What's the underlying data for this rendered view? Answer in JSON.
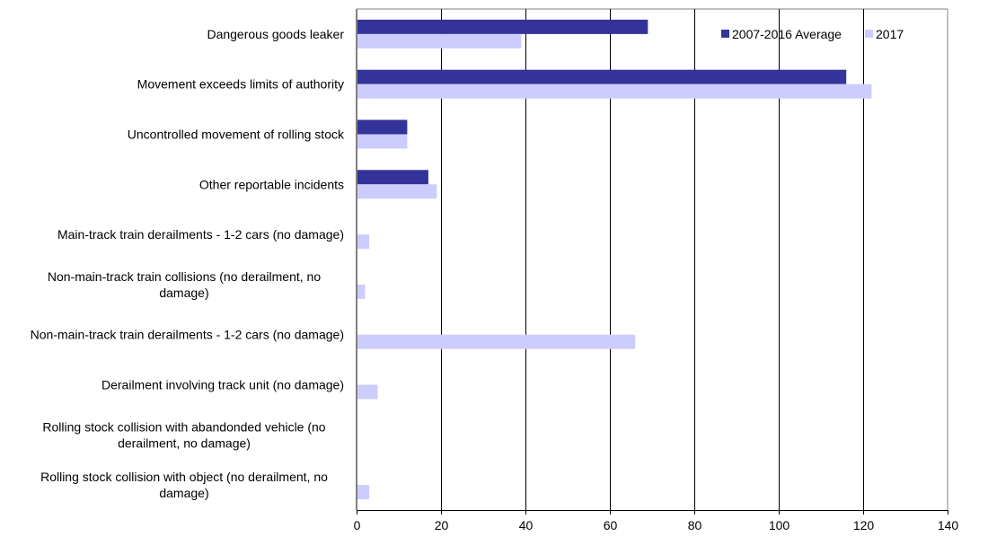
{
  "chart_data": {
    "type": "bar",
    "orientation": "horizontal",
    "title": "",
    "xlabel": "",
    "ylabel": "",
    "categories": [
      [
        "Dangerous goods leaker"
      ],
      [
        "Movement exceeds limits of authority"
      ],
      [
        "Uncontrolled movement of rolling stock"
      ],
      [
        "Other reportable incidents"
      ],
      [
        "Main-track train derailments - 1-2 cars (no damage)"
      ],
      [
        "Non-main-track train collisions (no derailment, no",
        "damage)"
      ],
      [
        "Non-main-track train derailments - 1-2 cars (no damage)"
      ],
      [
        "Derailment involving track unit (no damage)"
      ],
      [
        "Rolling stock collision with abandonded vehicle  (no",
        "derailment, no damage)"
      ],
      [
        "Rolling stock collision with object  (no derailment, no",
        "damage)"
      ]
    ],
    "series": [
      {
        "name": "2007-2016 Average",
        "color": "#333399",
        "values": [
          69,
          116,
          12,
          17,
          0,
          0,
          0,
          0,
          0,
          0
        ]
      },
      {
        "name": "2017",
        "color": "#ccccff",
        "values": [
          39,
          122,
          12,
          19,
          3,
          2,
          66,
          5,
          0,
          3
        ]
      }
    ],
    "xlim": [
      0,
      140
    ],
    "xticks": [
      "0",
      "20",
      "40",
      "60",
      "80",
      "100",
      "120",
      "140"
    ],
    "grid": true,
    "legend": "top-right"
  }
}
